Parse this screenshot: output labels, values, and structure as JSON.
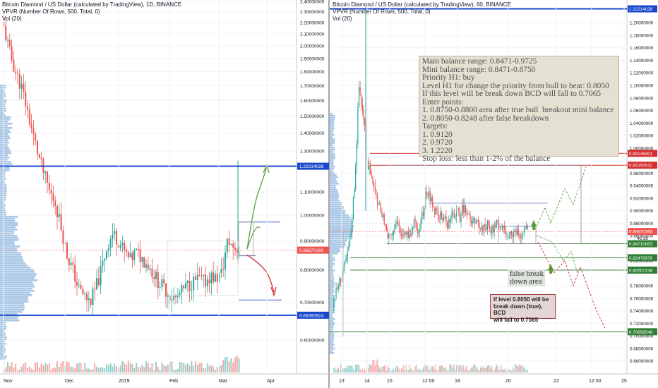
{
  "left_panel": {
    "title_lines": [
      "Bitcoin Diamond / US Dollar (calculated by TradingView), 1D, BINANCE",
      "VPVR (Number Of Rows, 500, Total, 0)",
      "Vol (20)"
    ]
  },
  "right_panel": {
    "title_lines": [
      "Bitcoin Diamond / US Dollar (calculated by TradingView), 60, BINANCE",
      "VPVR (Number Of Rows, 500, Total, 0)",
      "Vol (20)"
    ]
  },
  "analysis_note": {
    "lines": [
      "Main balance range: 0.8471-0.9725",
      "Mini balance range: 0.8471-0.8750",
      "Priority H1: buy",
      "Level H1 for change the priority from bull to bear: 0.8050",
      "If this level will be break down BCD will fall to 0.7065",
      "Enter points:",
      "1. 0.8750-0.8800 area after true bull  breakout mini balance",
      "2. 0.8050-0.8248 after false breakdown",
      "Targets:",
      "1. 0.9120",
      "2. 0.9720",
      "3. 1.2220",
      "Stop loss: less than 1-2% of the balance"
    ]
  },
  "false_break_label": {
    "lines": [
      "false break",
      "down area"
    ]
  },
  "callout_note": {
    "lines": [
      "If level 0.8050 will be",
      "break down (true), BCD",
      "will fall to 0.7065"
    ]
  },
  "colors": {
    "up": "#26a69a",
    "down": "#ef5350",
    "level_blue": "#1848cc",
    "level_red": "#d32f2f",
    "level_green": "#2e7d32",
    "price_label": "#ef5350",
    "volume_profile": "#8fb5dd",
    "arrow_green": "#5a9e3c",
    "arrow_red": "#d32f2f"
  },
  "chart_data": [
    {
      "type": "candlestick",
      "title": "Bitcoin Diamond / US Dollar (calculated by TradingView), 1D, BINANCE",
      "x_tick_labels": [
        "Nov",
        "Dec",
        "2019",
        "Feb",
        "Mar",
        "Apr"
      ],
      "y_tick_labels": [
        "2.40000000",
        "2.30000000",
        "2.20000000",
        "2.10000000",
        "2.00000000",
        "1.90000000",
        "1.80000000",
        "1.70000000",
        "1.60000000",
        "1.50000000",
        "1.40000000",
        "1.30000000",
        "1.10000000",
        "1.00000000",
        "0.90000000",
        "0.80000000",
        "0.70000000",
        "0.60000000"
      ],
      "ylim": [
        0.55,
        2.4
      ],
      "scale": "log",
      "current_price_label": "0.86670360",
      "levels": [
        {
          "price": 1.22214028,
          "label": "1.22214028",
          "color": "#1848cc"
        },
        {
          "price": 0.66392824,
          "label": "0.66392824",
          "color": "#1848cc"
        }
      ],
      "series_close_approx": [
        2.15,
        1.95,
        1.8,
        1.7,
        1.55,
        1.4,
        1.28,
        1.18,
        1.1,
        1.05,
        0.95,
        0.85,
        0.8,
        0.74,
        0.72,
        0.7,
        0.74,
        0.8,
        0.88,
        0.93,
        0.9,
        0.86,
        0.83,
        0.86,
        0.84,
        0.82,
        0.79,
        0.76,
        0.74,
        0.72,
        0.71,
        0.73,
        0.75,
        0.76,
        0.77,
        0.76,
        0.78,
        0.77,
        0.79,
        0.9,
        0.88,
        0.87
      ]
    },
    {
      "type": "candlestick",
      "title": "Bitcoin Diamond / US Dollar (calculated by TradingView), 60, BINANCE",
      "x_tick_labels": [
        "13",
        "14",
        "15",
        "12:00",
        "18",
        "20",
        "22",
        "12:00",
        "25"
      ],
      "y_tick_labels": [
        "1.20000000",
        "1.18000000",
        "1.16000000",
        "1.14000000",
        "1.12000000",
        "1.10000000",
        "1.08000000",
        "1.06000000",
        "1.04000000",
        "1.02000000",
        "1.00000000",
        "0.96000000",
        "0.94000000",
        "0.92000000",
        "0.90000000",
        "0.88000000",
        "0.86000000",
        "0.82000000",
        "0.78000000",
        "0.76000000",
        "0.74000000",
        "0.72000000",
        "0.70000000",
        "0.68000000",
        "0.66000000"
      ],
      "ylim": [
        0.645,
        1.225
      ],
      "scale": "linear",
      "current_price_label": "0.86670360",
      "countdown_label": "46:38",
      "levels": [
        {
          "price": 1.22214028,
          "label": "1.22214028",
          "color": "#1848cc"
        },
        {
          "price": 0.99149401,
          "label": "0.99149401",
          "color": "#d32f2f"
        },
        {
          "price": 0.97250011,
          "label": "0.97250011",
          "color": "#d32f2f"
        },
        {
          "price": 0.84710853,
          "label": "0.84710853",
          "color": "#2e7d32"
        },
        {
          "price": 0.82476976,
          "label": "0.82476976",
          "color": "#2e7d32"
        },
        {
          "price": 0.80507238,
          "label": "0.80507238",
          "color": "#2e7d32"
        },
        {
          "price": 0.70658548,
          "label": "0.70658548",
          "color": "#2e7d32"
        }
      ],
      "series_close_approx": [
        0.76,
        0.78,
        0.8,
        0.82,
        0.86,
        0.95,
        1.1,
        1.05,
        0.98,
        0.95,
        0.92,
        0.9,
        0.88,
        0.86,
        0.87,
        0.88,
        0.86,
        0.87,
        0.86,
        0.88,
        0.87,
        0.89,
        0.93,
        0.92,
        0.9,
        0.89,
        0.89,
        0.88,
        0.89,
        0.9,
        0.89,
        0.91,
        0.89,
        0.88,
        0.88,
        0.87,
        0.88,
        0.87,
        0.87,
        0.88,
        0.87,
        0.86,
        0.86,
        0.87,
        0.86,
        0.87,
        0.87
      ]
    }
  ]
}
